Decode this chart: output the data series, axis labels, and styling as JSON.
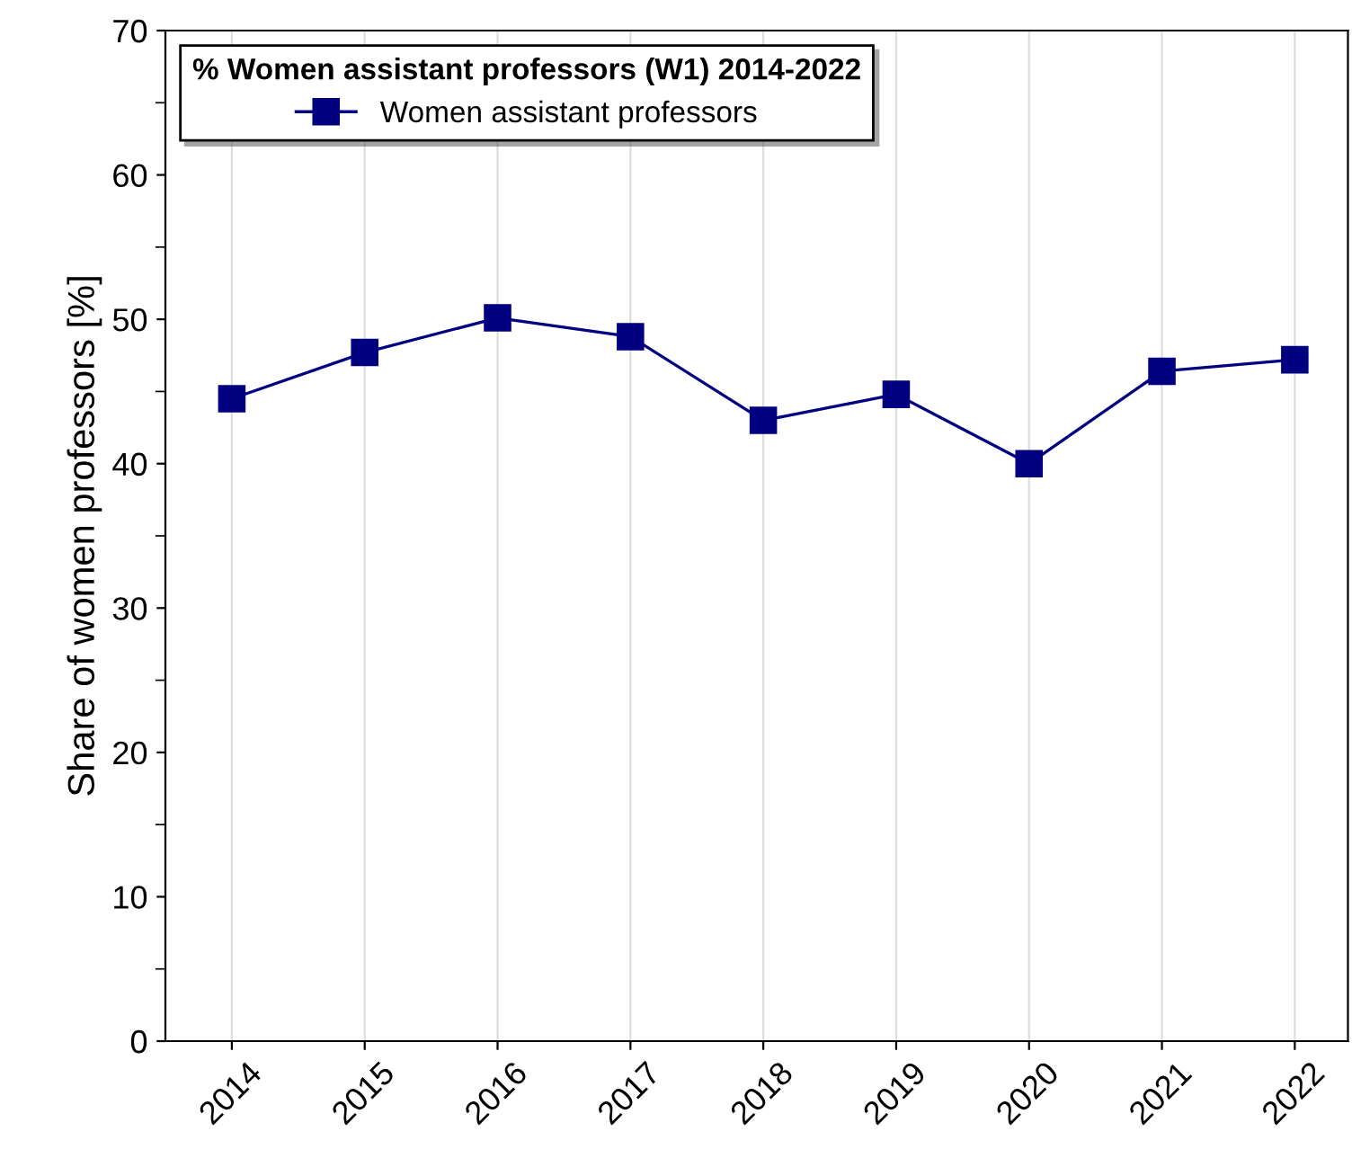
{
  "chart_data": {
    "type": "line",
    "ylabel": "Share of women professors [%]",
    "legend_title": "% Women assistant professors (W1) 2014-2022",
    "categories": [
      "2014",
      "2015",
      "2016",
      "2017",
      "2018",
      "2019",
      "2020",
      "2021",
      "2022"
    ],
    "series": [
      {
        "name": "Women assistant professors",
        "color": "#000080",
        "values": [
          44.5,
          47.7,
          50.1,
          48.8,
          43.0,
          44.8,
          40.0,
          46.4,
          47.2
        ]
      }
    ],
    "ylim": [
      0,
      70
    ],
    "yticks": [
      0,
      10,
      20,
      30,
      40,
      50,
      60,
      70
    ],
    "grid": "x",
    "legend": "top left",
    "marker": "square",
    "line_style": "solid"
  }
}
